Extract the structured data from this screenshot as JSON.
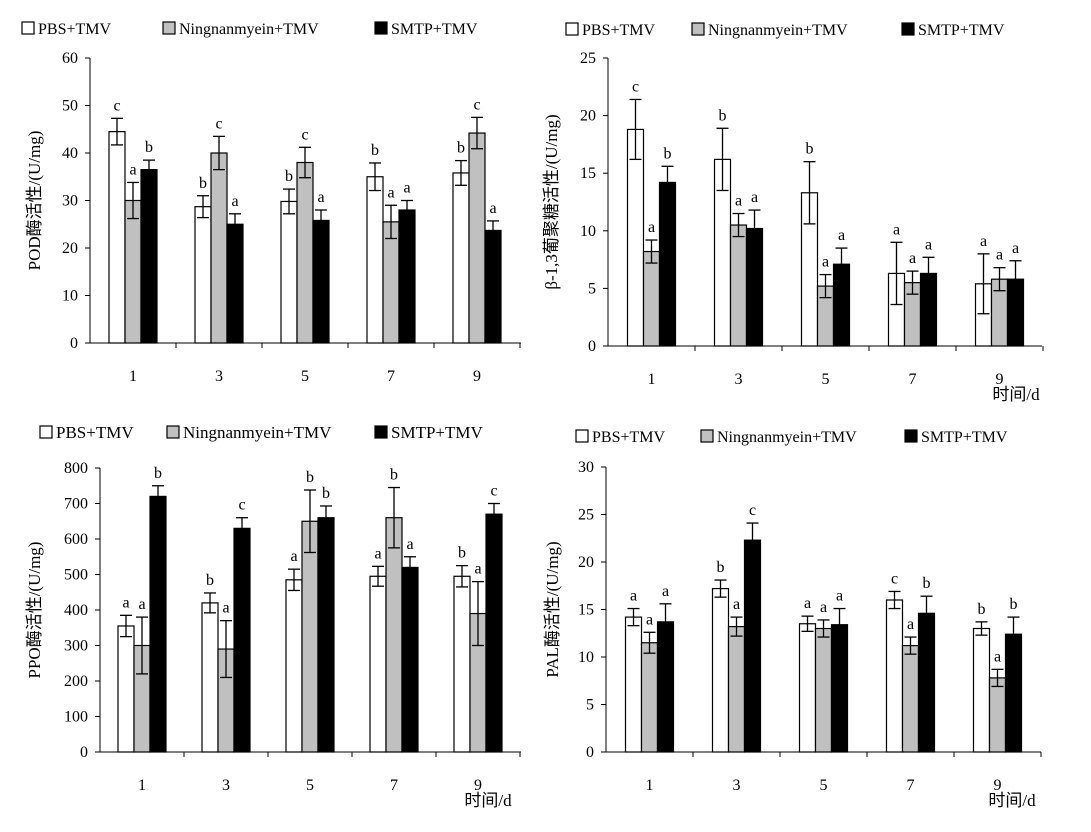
{
  "colors": {
    "PBS+TMV": "#ffffff",
    "Ningnanmyein+TMV": "#c0c0c0",
    "SMTP+TMV": "#000000",
    "axis": "#000000"
  },
  "chart_data": [
    {
      "type": "bar",
      "ylabel": "POD酶活性/(U/mg)",
      "xlabel": "",
      "categories": [
        "1",
        "3",
        "5",
        "7",
        "9"
      ],
      "ylim": [
        0,
        60
      ],
      "yticks": [
        0,
        10,
        20,
        30,
        40,
        50,
        60
      ],
      "legend_position": "top",
      "series": [
        {
          "name": "PBS+TMV",
          "values": [
            44.5,
            28.7,
            29.8,
            35.0,
            35.8
          ],
          "errors": [
            2.8,
            2.3,
            2.6,
            2.9,
            2.6
          ],
          "labels": [
            "c",
            "b",
            "b",
            "b",
            "b"
          ]
        },
        {
          "name": "Ningnanmyein+TMV",
          "values": [
            30.0,
            40.0,
            38.0,
            25.5,
            44.2
          ],
          "errors": [
            3.8,
            3.5,
            3.2,
            3.5,
            3.3
          ],
          "labels": [
            "a",
            "c",
            "c",
            "a",
            "c"
          ]
        },
        {
          "name": "SMTP+TMV",
          "values": [
            36.5,
            25.0,
            25.8,
            28.0,
            23.7
          ],
          "errors": [
            2.0,
            2.2,
            2.2,
            2.0,
            2.0
          ],
          "labels": [
            "b",
            "a",
            "a",
            "a",
            "a"
          ]
        }
      ]
    },
    {
      "type": "bar",
      "ylabel": "β-1,3葡聚糖活性/(U/mg)",
      "xlabel": "时间/d",
      "categories": [
        "1",
        "3",
        "5",
        "7",
        "9"
      ],
      "ylim": [
        0,
        25
      ],
      "yticks": [
        0,
        5,
        10,
        15,
        20,
        25
      ],
      "legend_position": "top",
      "series": [
        {
          "name": "PBS+TMV",
          "values": [
            18.8,
            16.2,
            13.3,
            6.3,
            5.4
          ],
          "errors": [
            2.6,
            2.7,
            2.7,
            2.7,
            2.6
          ],
          "labels": [
            "c",
            "b",
            "b",
            "a",
            "a"
          ]
        },
        {
          "name": "Ningnanmyein+TMV",
          "values": [
            8.2,
            10.5,
            5.2,
            5.5,
            5.8
          ],
          "errors": [
            1.0,
            1.0,
            1.0,
            1.0,
            1.0
          ],
          "labels": [
            "a",
            "a",
            "a",
            "a",
            "a"
          ]
        },
        {
          "name": "SMTP+TMV",
          "values": [
            14.2,
            10.2,
            7.1,
            6.3,
            5.8
          ],
          "errors": [
            1.4,
            1.6,
            1.4,
            1.4,
            1.6
          ],
          "labels": [
            "b",
            "a",
            "a",
            "a",
            "a"
          ]
        }
      ]
    },
    {
      "type": "bar",
      "ylabel": "PPO酶活性/(U/mg)",
      "xlabel": "时间/d",
      "categories": [
        "1",
        "3",
        "5",
        "7",
        "9"
      ],
      "ylim": [
        0,
        800
      ],
      "yticks": [
        0,
        100,
        200,
        300,
        400,
        500,
        600,
        700,
        800
      ],
      "legend_position": "top",
      "series": [
        {
          "name": "PBS+TMV",
          "values": [
            355,
            420,
            485,
            495,
            495
          ],
          "errors": [
            30,
            28,
            30,
            28,
            30
          ],
          "labels": [
            "a",
            "b",
            "a",
            "a",
            "b"
          ]
        },
        {
          "name": "Ningnanmyein+TMV",
          "values": [
            300,
            290,
            650,
            660,
            390
          ],
          "errors": [
            80,
            80,
            88,
            85,
            90
          ],
          "labels": [
            "a",
            "a",
            "b",
            "b",
            "a"
          ]
        },
        {
          "name": "SMTP+TMV",
          "values": [
            720,
            630,
            660,
            520,
            670
          ],
          "errors": [
            30,
            30,
            33,
            30,
            30
          ],
          "labels": [
            "b",
            "c",
            "b",
            "a",
            "c"
          ]
        }
      ]
    },
    {
      "type": "bar",
      "ylabel": "PAL酶活性/(U/mg)",
      "xlabel": "时间/d",
      "categories": [
        "1",
        "3",
        "5",
        "7",
        "9"
      ],
      "ylim": [
        0,
        30
      ],
      "yticks": [
        0,
        5,
        10,
        15,
        20,
        25,
        30
      ],
      "legend_position": "top",
      "series": [
        {
          "name": "PBS+TMV",
          "values": [
            14.2,
            17.2,
            13.5,
            16.0,
            13.0
          ],
          "errors": [
            0.9,
            0.9,
            0.8,
            0.9,
            0.7
          ],
          "labels": [
            "a",
            "b",
            "a",
            "c",
            "b"
          ]
        },
        {
          "name": "Ningnanmyein+TMV",
          "values": [
            11.5,
            13.2,
            13.0,
            11.2,
            7.8
          ],
          "errors": [
            1.1,
            1.0,
            0.9,
            0.9,
            0.9
          ],
          "labels": [
            "a",
            "a",
            "a",
            "a",
            "a"
          ]
        },
        {
          "name": "SMTP+TMV",
          "values": [
            13.7,
            22.3,
            13.4,
            14.6,
            12.4
          ],
          "errors": [
            1.9,
            1.8,
            1.7,
            1.8,
            1.8
          ],
          "labels": [
            "a",
            "c",
            "a",
            "b",
            "b"
          ]
        }
      ]
    }
  ]
}
